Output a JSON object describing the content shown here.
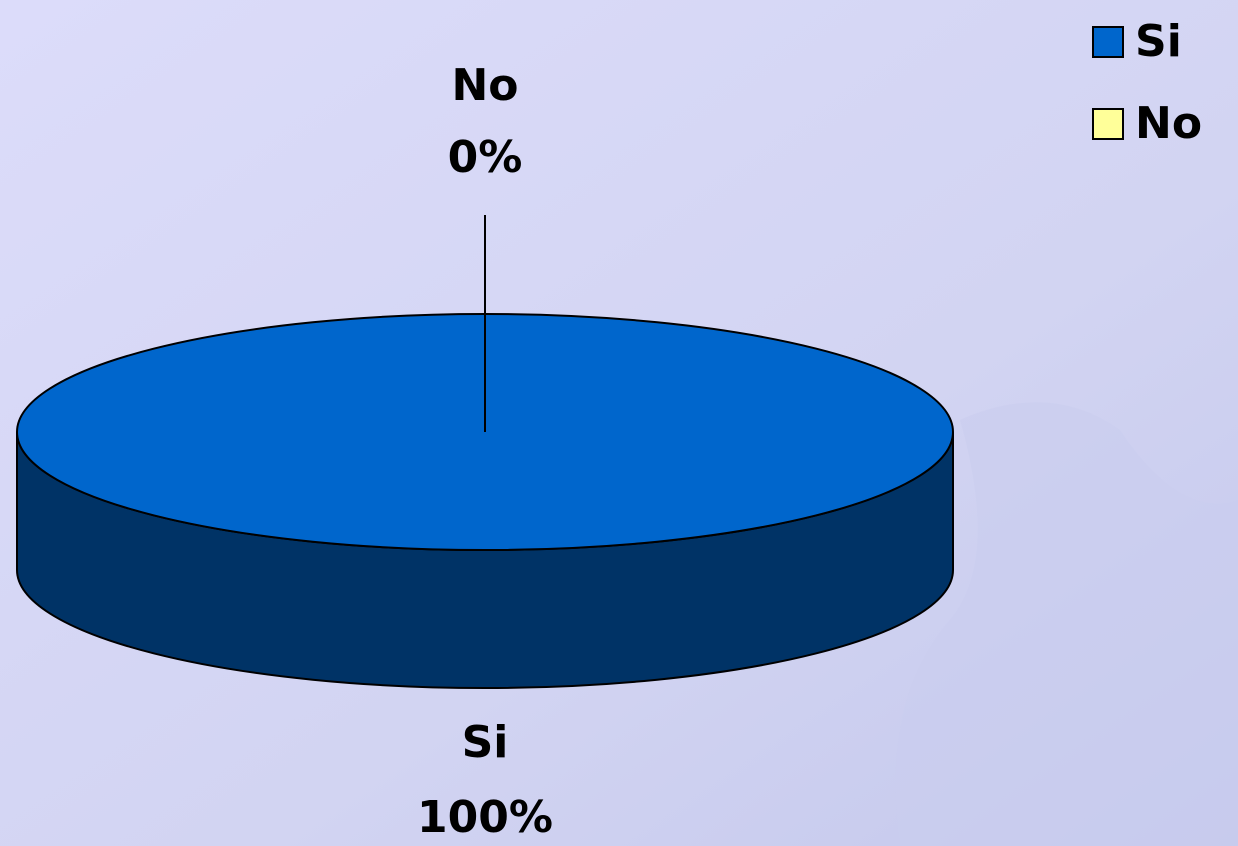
{
  "chart_data": {
    "type": "pie",
    "categories": [
      "Si",
      "No"
    ],
    "values": [
      100,
      0
    ],
    "value_labels": [
      "100%",
      "0%"
    ],
    "colors": [
      "#0066cc",
      "#ffff99"
    ],
    "legend": "top-right"
  }
}
